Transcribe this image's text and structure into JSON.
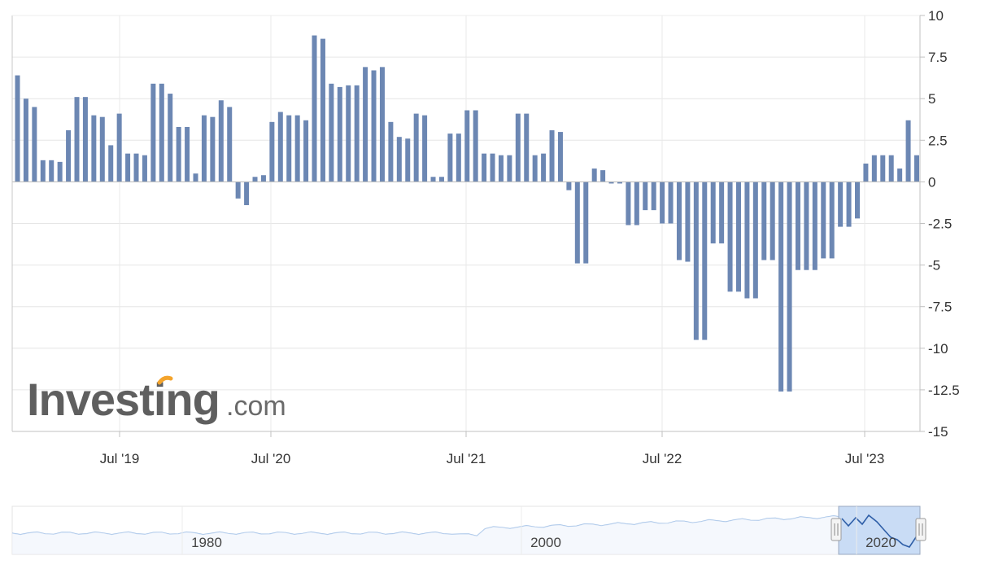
{
  "chart_data": {
    "type": "bar",
    "ylim": [
      -15,
      10
    ],
    "y_ticks": [
      "10",
      "7.5",
      "5",
      "2.5",
      "0",
      "-2.5",
      "-5",
      "-7.5",
      "-10",
      "-12.5",
      "-15"
    ],
    "x_ticks": [
      "Jul '19",
      "Jul '20",
      "Jul '21",
      "Jul '22",
      "Jul '23"
    ],
    "grid": true,
    "bar_color": "#6c87b3",
    "series": [
      {
        "values": [
          6.4,
          5.0,
          4.5,
          1.3,
          1.3,
          1.2,
          3.1,
          5.1,
          5.1,
          4.0,
          3.9,
          2.2,
          4.1,
          1.7,
          1.7,
          1.6,
          5.9,
          5.9,
          5.3,
          3.3,
          3.3,
          0.5,
          4.0,
          3.9,
          4.9,
          4.5,
          -1.0,
          -1.4,
          0.3,
          0.4,
          3.6,
          4.2,
          4.0,
          4.0,
          3.7,
          8.8,
          8.6,
          5.9,
          5.7,
          5.8,
          5.8,
          6.9,
          6.7,
          6.9,
          3.6,
          2.7,
          2.6,
          4.1,
          4.0,
          0.3,
          0.3,
          2.9,
          2.9,
          4.3,
          4.3,
          1.7,
          1.7,
          1.6,
          1.6,
          4.1,
          4.1,
          1.6,
          1.7,
          3.1,
          3.0,
          -0.5,
          -4.9,
          -4.9,
          0.8,
          0.7,
          -0.1,
          -0.1,
          -2.6,
          -2.6,
          -1.7,
          -1.7,
          -2.5,
          -2.5,
          -4.7,
          -4.8,
          -9.5,
          -9.5,
          -3.7,
          -3.7,
          -6.6,
          -6.6,
          -7.0,
          -7.0,
          -4.7,
          -4.7,
          -12.6,
          -12.6,
          -5.3,
          -5.3,
          -5.3,
          -4.6,
          -4.6,
          -2.7,
          -2.7,
          -2.2,
          1.1,
          1.6,
          1.6,
          1.6,
          0.8,
          3.7,
          1.6
        ]
      }
    ],
    "watermark": {
      "brand": "Investing",
      "suffix": ".com",
      "accent": "#f4a42c"
    },
    "navigator": {
      "labels": [
        "1980",
        "2000",
        "2020"
      ],
      "line_color": "#9fbfe6",
      "selected_line_color": "#2f5fa8",
      "selected_fill": "#c9dcf5"
    }
  }
}
